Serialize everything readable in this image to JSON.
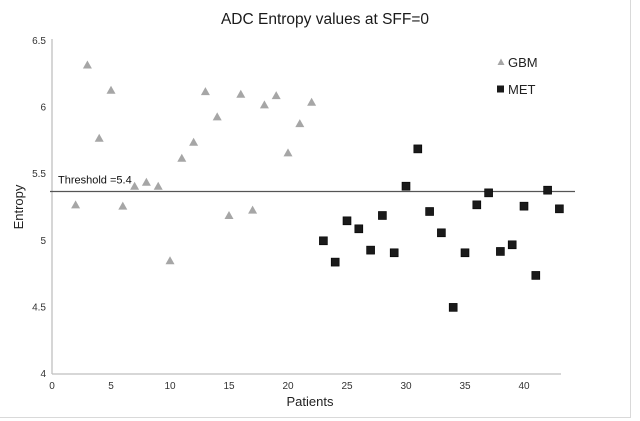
{
  "chart_data": {
    "type": "scatter",
    "title": "ADC Entropy values at SFF=0",
    "xlabel": "Patients",
    "ylabel": "Entropy",
    "xlim": [
      0,
      43.5
    ],
    "ylim": [
      4,
      6.5
    ],
    "xticks": [
      0,
      5,
      10,
      15,
      20,
      25,
      30,
      35,
      40
    ],
    "xtick_labels": [
      "0",
      "5",
      "10",
      "15",
      "20",
      "25",
      "30",
      "35",
      "40"
    ],
    "yticks": [
      4,
      4.5,
      5,
      5.5,
      6,
      6.5
    ],
    "ytick_labels": [
      "4",
      "4.5",
      "5",
      "5.5",
      "6",
      "6.5"
    ],
    "grid": false,
    "legend_position": "top-right",
    "series": [
      {
        "name": "GBM",
        "marker": "triangle",
        "color": "#a6a6a6",
        "x": [
          2,
          3,
          4,
          5,
          6,
          7,
          8,
          9,
          10,
          11,
          12,
          13,
          14,
          15,
          16,
          17,
          18,
          19,
          20,
          21,
          22
        ],
        "y": [
          5.27,
          6.32,
          5.77,
          6.13,
          5.26,
          5.41,
          5.44,
          5.41,
          4.85,
          5.62,
          5.74,
          6.12,
          5.93,
          5.19,
          6.1,
          5.23,
          6.02,
          6.09,
          5.66,
          5.88,
          6.04
        ]
      },
      {
        "name": "MET",
        "marker": "square",
        "color": "#1a1a1a",
        "x": [
          23,
          24,
          25,
          26,
          27,
          28,
          29,
          30,
          31,
          32,
          33,
          34,
          35,
          36,
          37,
          38,
          39,
          40,
          41,
          42,
          43
        ],
        "y": [
          5.0,
          4.84,
          5.15,
          5.09,
          4.93,
          5.19,
          4.91,
          5.41,
          5.69,
          5.22,
          5.06,
          4.5,
          4.91,
          5.27,
          5.36,
          4.92,
          4.97,
          5.26,
          4.74,
          5.38,
          5.24
        ]
      }
    ],
    "annotations": [
      {
        "type": "hline",
        "y": 5.4,
        "label": "Threshold =5.4",
        "color": "#555555"
      }
    ]
  }
}
